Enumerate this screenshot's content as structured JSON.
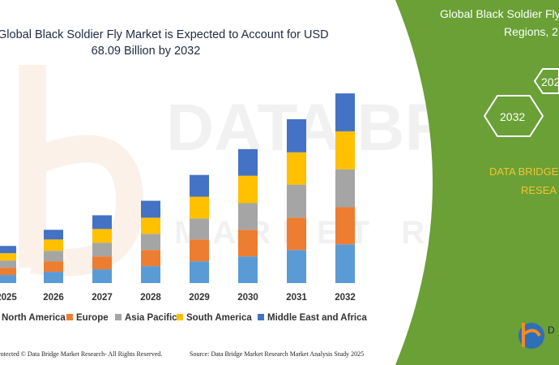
{
  "chart_data": {
    "type": "bar",
    "stacked": true,
    "title": "Global Black Soldier Fly Market is Expected to Account for USD 68.09 Billion by 2032",
    "categories": [
      "2025",
      "2026",
      "2027",
      "2028",
      "2029",
      "2030",
      "2031",
      "2032"
    ],
    "series": [
      {
        "name": "North America",
        "color": "#5b9bd5",
        "values": [
          10,
          14,
          17,
          21,
          27,
          33,
          41,
          48
        ]
      },
      {
        "name": "Europe",
        "color": "#ed7d31",
        "values": [
          9,
          13,
          16,
          20,
          27,
          33,
          40,
          46
        ]
      },
      {
        "name": "Asia Pacific",
        "color": "#a5a5a5",
        "values": [
          9,
          13,
          17,
          20,
          26,
          33,
          41,
          47
        ]
      },
      {
        "name": "South America",
        "color": "#ffc000",
        "values": [
          9,
          14,
          17,
          20,
          27,
          34,
          40,
          47
        ]
      },
      {
        "name": "Middle East and Africa",
        "color": "#4472c4",
        "values": [
          9,
          12,
          17,
          21,
          27,
          33,
          41,
          47
        ]
      }
    ],
    "grid": false,
    "legend_position": "bottom",
    "xlabel": "",
    "ylabel": ""
  },
  "side_panel": {
    "title_line1": "Global Black Soldier Fly",
    "title_line2": "Regions, 2",
    "hex_labels": [
      "2032",
      "202"
    ],
    "brand_line1": "DATA BRIDGE",
    "brand_line2": "RESEA",
    "colors": {
      "panel": "#6aa036",
      "hex_stroke": "#ffffff",
      "brand_text": "#f4c430"
    }
  },
  "watermark": {
    "line1": "DATA BRIDGE",
    "line2": "MARKET RESEARCH"
  },
  "logo": {
    "text": "D"
  },
  "footer": {
    "left": "rotected © Data Bridge Market Research- All Rights Reserved.",
    "right": "Source: Data Bridge Market Research Market Analysis Study 2025"
  }
}
